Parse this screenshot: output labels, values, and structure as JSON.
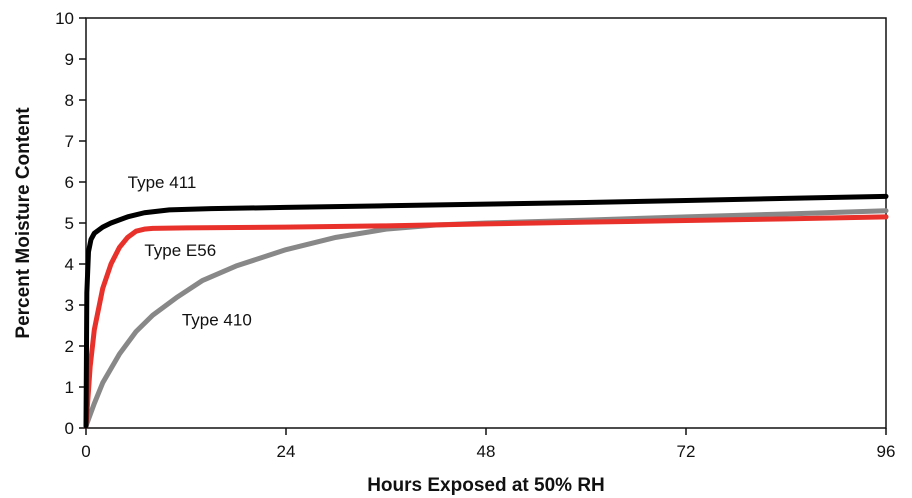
{
  "chart_data": {
    "type": "line",
    "xlabel": "Hours Exposed at 50% RH",
    "ylabel": "Percent Moisture Content",
    "xlim": [
      0,
      96
    ],
    "ylim": [
      0,
      10
    ],
    "x_ticks": [
      "0",
      "24",
      "48",
      "72",
      "96"
    ],
    "y_ticks": [
      "0",
      "1",
      "2",
      "3",
      "4",
      "5",
      "6",
      "7",
      "8",
      "9",
      "10"
    ],
    "grid": false,
    "legend": "inline labels next to curves",
    "series": [
      {
        "name": "Type 411",
        "color": "#000000",
        "x": [
          0,
          0.1,
          0.3,
          0.6,
          1,
          2,
          3,
          5,
          7,
          10,
          15,
          24,
          36,
          48,
          60,
          72,
          84,
          96
        ],
        "y": [
          0.05,
          3.3,
          4.3,
          4.6,
          4.75,
          4.9,
          5.0,
          5.15,
          5.25,
          5.32,
          5.35,
          5.38,
          5.42,
          5.46,
          5.5,
          5.55,
          5.6,
          5.65
        ]
      },
      {
        "name": "Type E56",
        "color": "#e8312a",
        "x": [
          0,
          0.5,
          1,
          2,
          3,
          4,
          5,
          6,
          7,
          8,
          12,
          24,
          36,
          48,
          60,
          72,
          84,
          96
        ],
        "y": [
          0.05,
          1.5,
          2.4,
          3.4,
          4.0,
          4.4,
          4.65,
          4.8,
          4.85,
          4.87,
          4.88,
          4.9,
          4.93,
          4.98,
          5.02,
          5.06,
          5.1,
          5.15
        ]
      },
      {
        "name": "Type 410",
        "color": "#888888",
        "x": [
          0,
          1,
          2,
          4,
          6,
          8,
          11,
          14,
          18,
          24,
          30,
          36,
          42,
          48,
          60,
          72,
          84,
          96
        ],
        "y": [
          0.05,
          0.6,
          1.1,
          1.8,
          2.35,
          2.75,
          3.2,
          3.6,
          3.95,
          4.35,
          4.65,
          4.85,
          4.95,
          5.0,
          5.07,
          5.15,
          5.22,
          5.3
        ]
      }
    ],
    "annotations": [
      {
        "text": "Type 411",
        "series": "Type 411",
        "x": 5,
        "y": 5.85
      },
      {
        "text": "Type E56",
        "series": "Type E56",
        "x": 7,
        "y": 4.2
      },
      {
        "text": "Type 410",
        "series": "Type 410",
        "x": 11.5,
        "y": 2.5
      }
    ]
  }
}
